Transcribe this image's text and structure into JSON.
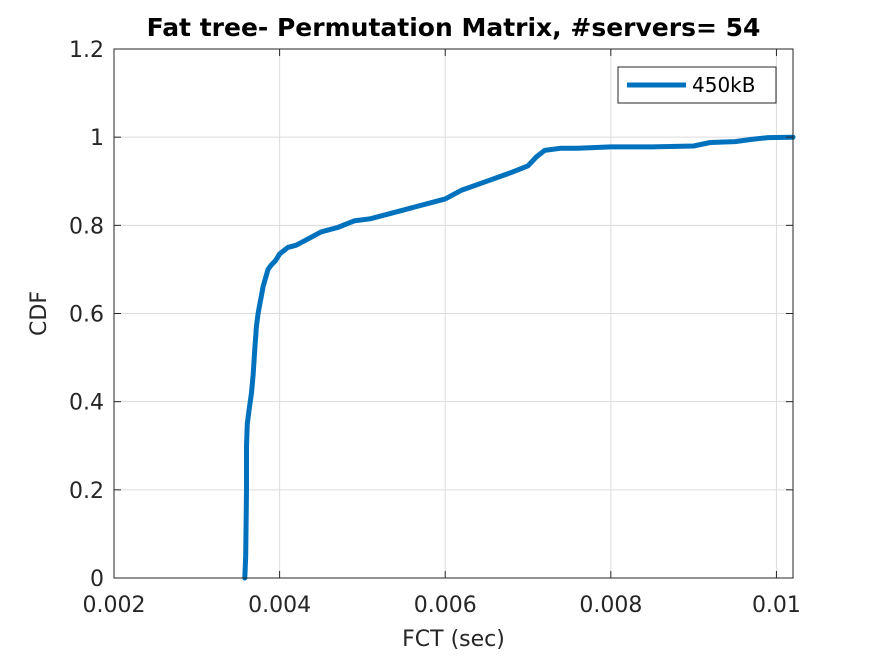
{
  "chart_data": {
    "type": "line",
    "title": "Fat tree- Permutation Matrix, #servers= 54",
    "xlabel": "FCT (sec)",
    "ylabel": "CDF",
    "xlim": [
      0.002,
      0.0102
    ],
    "ylim": [
      0,
      1.2
    ],
    "xticks": [
      0.002,
      0.004,
      0.006,
      0.008,
      0.01
    ],
    "xtick_labels": [
      "0.002",
      "0.004",
      "0.006",
      "0.008",
      "0.01"
    ],
    "yticks": [
      0,
      0.2,
      0.4,
      0.6,
      0.8,
      1,
      1.2
    ],
    "ytick_labels": [
      "0",
      "0.2",
      "0.4",
      "0.6",
      "0.8",
      "1",
      "1.2"
    ],
    "grid": true,
    "legend_position": "top-right",
    "series": [
      {
        "name": "450kB",
        "color": "#0072BD",
        "x": [
          0.00358,
          0.00359,
          0.0036,
          0.0036,
          0.00361,
          0.00363,
          0.00366,
          0.00368,
          0.0037,
          0.00372,
          0.00374,
          0.00376,
          0.00378,
          0.0038,
          0.00383,
          0.00386,
          0.0039,
          0.00395,
          0.004,
          0.0041,
          0.0042,
          0.0043,
          0.0044,
          0.0045,
          0.0047,
          0.0049,
          0.0051,
          0.0053,
          0.0055,
          0.0057,
          0.0058,
          0.006,
          0.0062,
          0.0065,
          0.0068,
          0.007,
          0.0071,
          0.0072,
          0.0074,
          0.0076,
          0.008,
          0.0085,
          0.009,
          0.0092,
          0.0095,
          0.0097,
          0.0099,
          0.0102
        ],
        "y": [
          0.0,
          0.05,
          0.2,
          0.3,
          0.35,
          0.38,
          0.42,
          0.46,
          0.52,
          0.57,
          0.6,
          0.62,
          0.64,
          0.66,
          0.68,
          0.7,
          0.71,
          0.72,
          0.735,
          0.75,
          0.755,
          0.765,
          0.775,
          0.785,
          0.795,
          0.81,
          0.815,
          0.825,
          0.835,
          0.845,
          0.85,
          0.86,
          0.88,
          0.9,
          0.92,
          0.935,
          0.955,
          0.97,
          0.975,
          0.975,
          0.978,
          0.978,
          0.98,
          0.988,
          0.99,
          0.995,
          0.999,
          1.0
        ]
      }
    ]
  }
}
